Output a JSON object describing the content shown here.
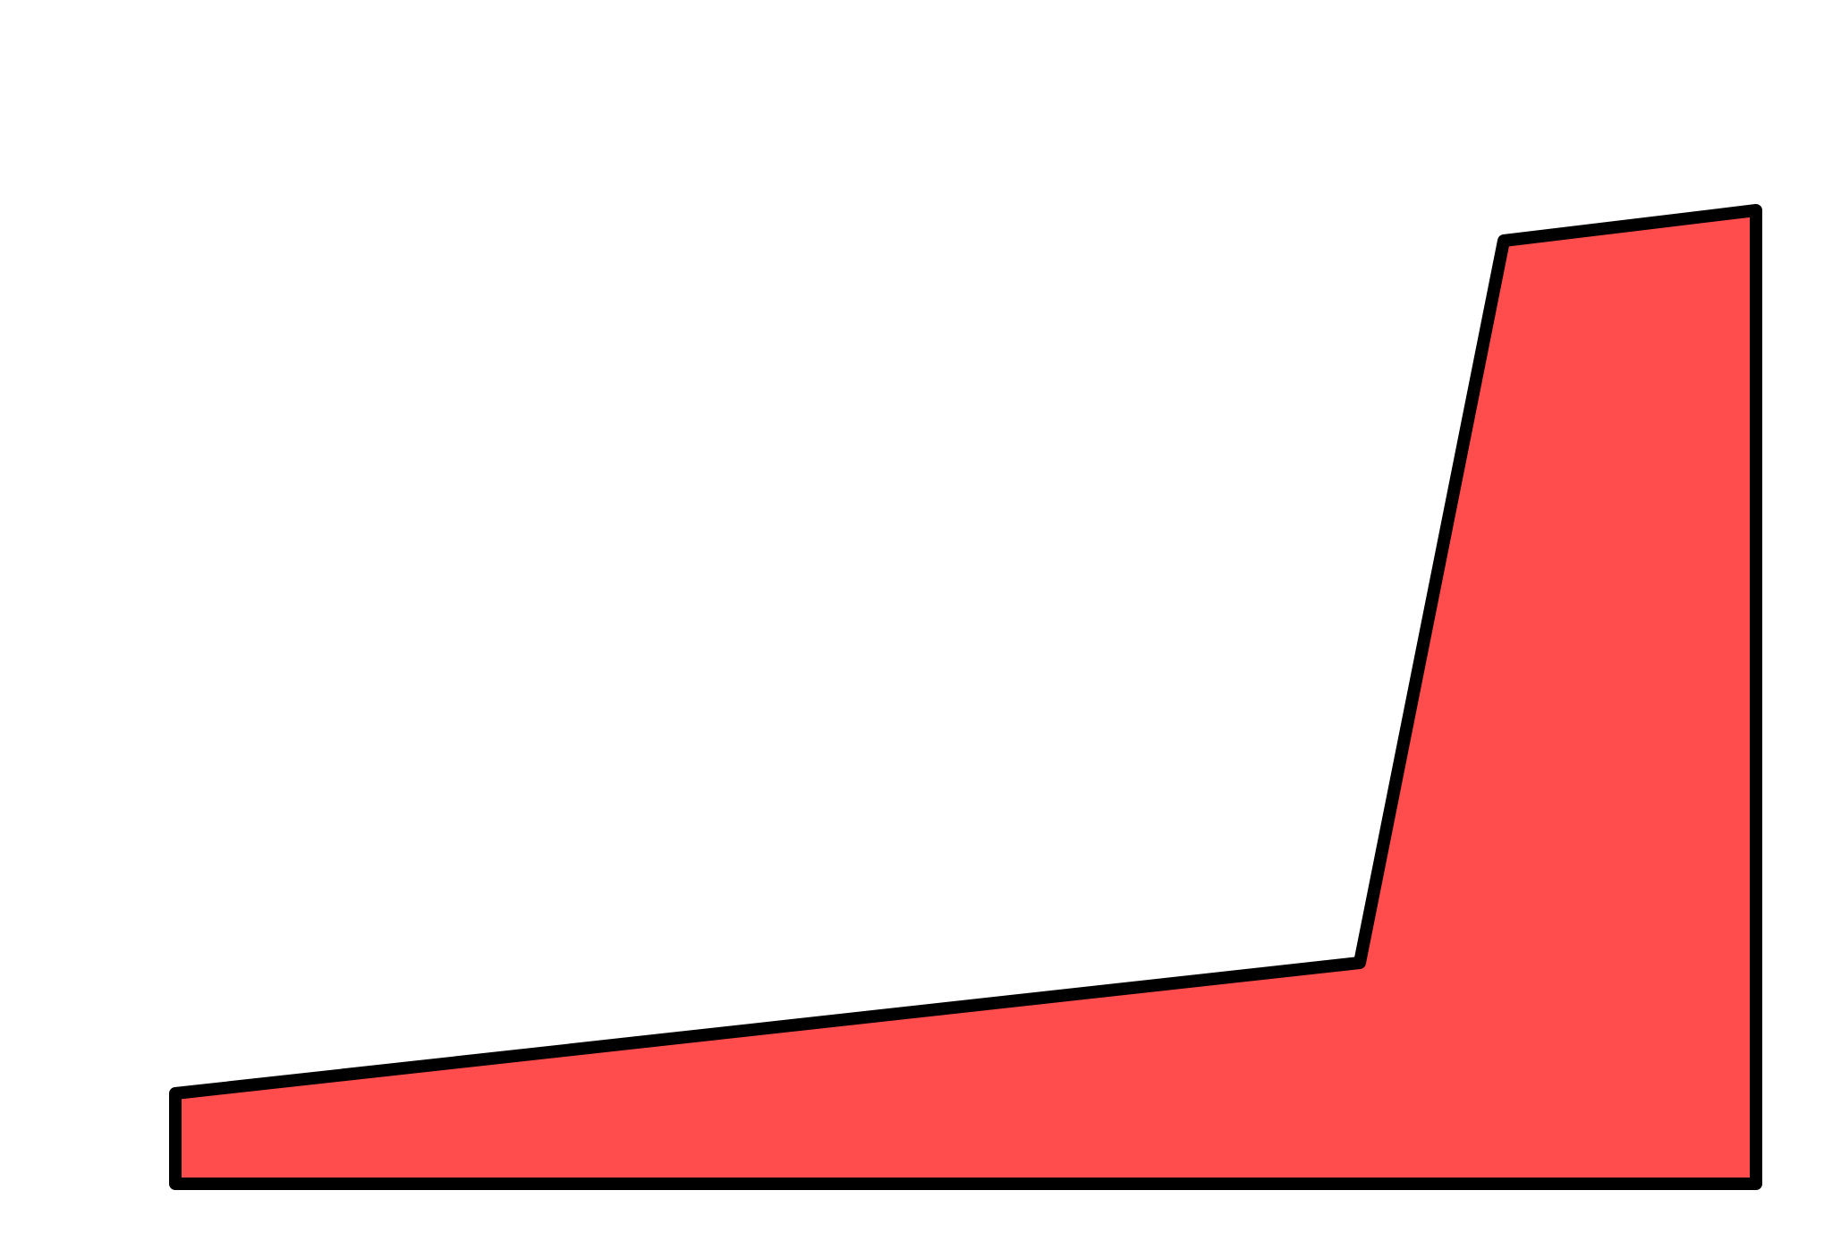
{
  "background": "#ffffff",
  "shape": {
    "kind": "filled-polygon",
    "fill": "#ff4c4c",
    "stroke": "#000000",
    "description_visible_text": ""
  }
}
